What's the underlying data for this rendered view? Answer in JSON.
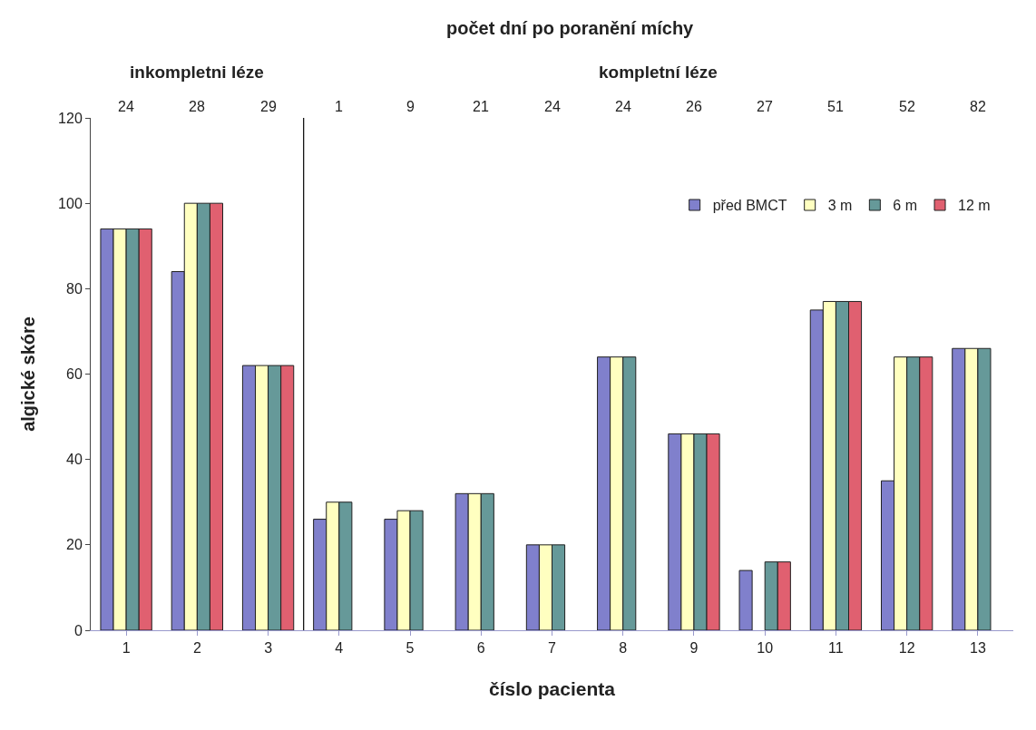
{
  "chart_data": {
    "type": "bar",
    "title": "počet dní po poranění míchy",
    "xlabel": "číslo pacienta",
    "ylabel": "algické skóre",
    "x": [
      1,
      2,
      3,
      4,
      5,
      6,
      7,
      8,
      9,
      10,
      11,
      12,
      13
    ],
    "xlim": [
      0.5,
      13.5
    ],
    "xticks": [
      1,
      2,
      3,
      4,
      5,
      6,
      7,
      8,
      9,
      10,
      11,
      12,
      13
    ],
    "ylim": [
      0,
      120
    ],
    "yticks": [
      0,
      20,
      40,
      60,
      80,
      100,
      120
    ],
    "series": [
      {
        "name": "před BMCT",
        "color": "#8080cc",
        "values": [
          94,
          84,
          62,
          26,
          26,
          32,
          20,
          64,
          46,
          14,
          75,
          35,
          66
        ]
      },
      {
        "name": "3 m",
        "color": "#ffffc0",
        "values": [
          94,
          100,
          62,
          30,
          28,
          32,
          20,
          64,
          46,
          null,
          77,
          64,
          66
        ]
      },
      {
        "name": "6 m",
        "color": "#669999",
        "values": [
          94,
          100,
          62,
          30,
          28,
          32,
          20,
          64,
          46,
          16,
          77,
          64,
          66
        ]
      },
      {
        "name": "12 m",
        "color": "#e06070",
        "values": [
          94,
          100,
          62,
          null,
          null,
          null,
          null,
          null,
          46,
          16,
          77,
          64,
          null
        ]
      }
    ],
    "ref_lines": [
      {
        "axis": "x",
        "value": 3.5,
        "color": "#000000"
      }
    ],
    "annotations": [
      "inkompletni léze",
      "kompletní léze",
      "24",
      "28",
      "29",
      "1",
      "9",
      "21",
      "24",
      "24",
      "26",
      "27",
      "51",
      "52",
      "82"
    ],
    "legend": "top right",
    "grid": false
  }
}
